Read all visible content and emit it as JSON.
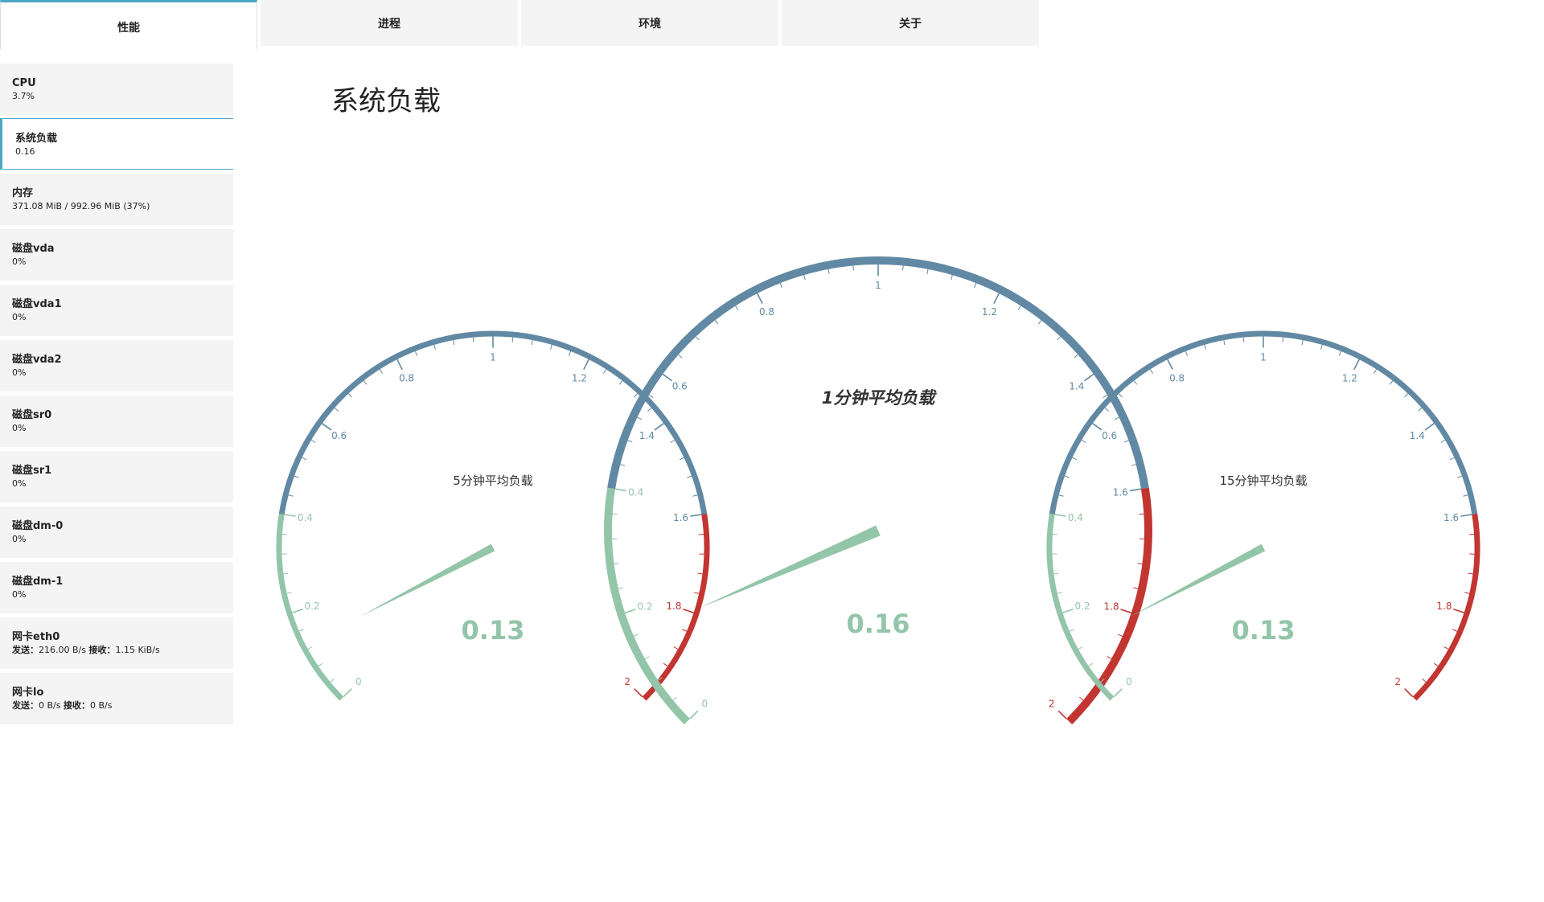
{
  "tabs": [
    {
      "label": "性能",
      "active": true
    },
    {
      "label": "进程",
      "active": false
    },
    {
      "label": "环境",
      "active": false
    },
    {
      "label": "关于",
      "active": false
    }
  ],
  "sidebar": {
    "items": [
      {
        "title": "CPU",
        "value": "3.7%",
        "active": false
      },
      {
        "title": "系统负载",
        "value": "0.16",
        "active": true
      },
      {
        "title": "内存",
        "value": "371.08 MiB / 992.96 MiB (37%)",
        "active": false
      },
      {
        "title": "磁盘vda",
        "value": "0%",
        "active": false
      },
      {
        "title": "磁盘vda1",
        "value": "0%",
        "active": false
      },
      {
        "title": "磁盘vda2",
        "value": "0%",
        "active": false
      },
      {
        "title": "磁盘sr0",
        "value": "0%",
        "active": false
      },
      {
        "title": "磁盘sr1",
        "value": "0%",
        "active": false
      },
      {
        "title": "磁盘dm-0",
        "value": "0%",
        "active": false
      },
      {
        "title": "磁盘dm-1",
        "value": "0%",
        "active": false
      },
      {
        "title": "网卡eth0",
        "send_label": "发送：",
        "send_value": "216.00 B/s",
        "recv_label": "接收：",
        "recv_value": "1.15 KiB/s",
        "active": false
      },
      {
        "title": "网卡lo",
        "send_label": "发送：",
        "send_value": "0 B/s",
        "recv_label": "接收：",
        "recv_value": "0 B/s",
        "active": false
      }
    ]
  },
  "main": {
    "title": "系统负载"
  },
  "colors": {
    "low": "#93c5a9",
    "mid": "#6289a3",
    "high": "#c23531",
    "accent": "#4aa8c7"
  },
  "gauges": [
    {
      "id": "gauge-5min",
      "name": "5分钟平均负载",
      "value": 0.13,
      "value_label": "0.13",
      "min": 0,
      "max": 2,
      "ticks": [
        "0",
        "0.2",
        "0.4",
        "0.6",
        "0.8",
        "1",
        "1.2",
        "1.4",
        "1.6",
        "1.8",
        "2"
      ],
      "bands": [
        {
          "to": 0.4,
          "color": "low"
        },
        {
          "to": 1.6,
          "color": "mid"
        },
        {
          "to": 2,
          "color": "high"
        }
      ]
    },
    {
      "id": "gauge-1min",
      "name": "1分钟平均负载",
      "value": 0.16,
      "value_label": "0.16",
      "min": 0,
      "max": 2,
      "ticks": [
        "0",
        "0.2",
        "0.4",
        "0.6",
        "0.8",
        "1",
        "1.2",
        "1.4",
        "1.6",
        "1.8",
        "2"
      ],
      "bands": [
        {
          "to": 0.4,
          "color": "low"
        },
        {
          "to": 1.6,
          "color": "mid"
        },
        {
          "to": 2,
          "color": "high"
        }
      ]
    },
    {
      "id": "gauge-15min",
      "name": "15分钟平均负载",
      "value": 0.13,
      "value_label": "0.13",
      "min": 0,
      "max": 2,
      "ticks": [
        "0",
        "0.2",
        "0.4",
        "0.6",
        "0.8",
        "1",
        "1.2",
        "1.4",
        "1.6",
        "1.8",
        "2"
      ],
      "bands": [
        {
          "to": 0.4,
          "color": "low"
        },
        {
          "to": 1.6,
          "color": "mid"
        },
        {
          "to": 2,
          "color": "high"
        }
      ]
    }
  ]
}
